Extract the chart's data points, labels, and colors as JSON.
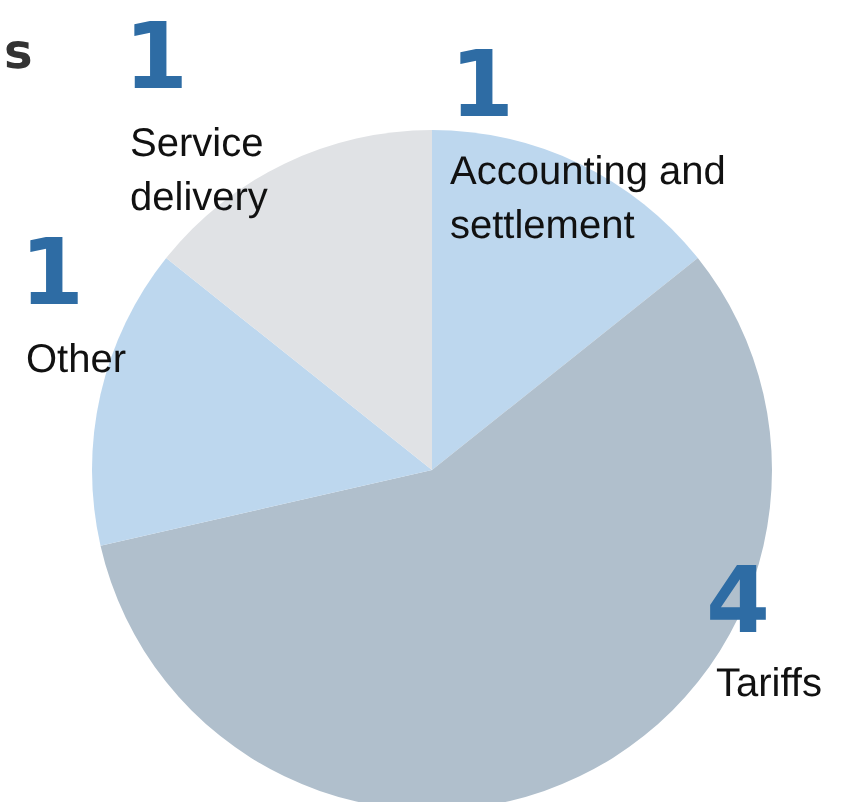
{
  "chart_data": {
    "type": "pie",
    "categories": [
      "Accounting and settlement",
      "Tariffs",
      "Other",
      "Service delivery"
    ],
    "values": [
      1,
      4,
      1,
      1
    ],
    "colors": [
      "#bdd7ee",
      "#b0bfcc",
      "#bdd7ee",
      "#e0e2e5"
    ],
    "data_labels": true,
    "annotations": [
      "s"
    ]
  }
}
